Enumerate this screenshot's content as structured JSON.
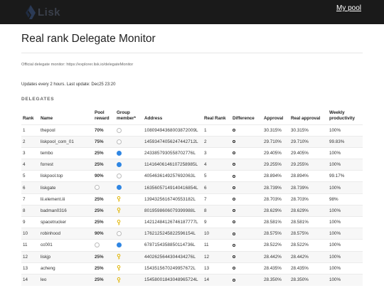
{
  "header": {
    "logo_text": "Lisk",
    "my_pool": "My pool"
  },
  "page": {
    "title": "Real rank Delegate Monitor",
    "official": "Official delegate monitor: https://explorer.lisk.io/delegateMonitor",
    "updates": "Updates every 2 hours. Last update: Dec25 23:20",
    "section": "DELEGATES"
  },
  "table": {
    "columns": [
      "Rank",
      "Name",
      "Pool reward",
      "Group member*",
      "Address",
      "Real Rank",
      "Difference",
      "Approval",
      "Real approval",
      "Weekly productivity"
    ],
    "rows": [
      {
        "rank": "1",
        "name": "thepool",
        "reward": "70%",
        "member": "no",
        "address": "10809494368003872009L",
        "real_rank": "1",
        "approval": "30.315%",
        "real_approval": "30.315%",
        "productivity": "100%"
      },
      {
        "rank": "2",
        "name": "liskpool_com_01",
        "reward": "75%",
        "member": "no",
        "address": "14593474056247442712L",
        "real_rank": "2",
        "approval": "29.710%",
        "real_approval": "29.710%",
        "productivity": "99.83%"
      },
      {
        "rank": "3",
        "name": "tembo",
        "reward": "25%",
        "member": "yes",
        "address": "2433857930558702776L",
        "real_rank": "3",
        "approval": "29.405%",
        "real_approval": "29.405%",
        "productivity": "100%"
      },
      {
        "rank": "4",
        "name": "forrest",
        "reward": "25%",
        "member": "yes",
        "address": "11416406146107258985L",
        "real_rank": "4",
        "approval": "29.255%",
        "real_approval": "29.255%",
        "productivity": "100%"
      },
      {
        "rank": "5",
        "name": "liskpool.top",
        "reward": "90%",
        "member": "no",
        "address": "4054636149257692063L",
        "real_rank": "5",
        "approval": "28.894%",
        "real_approval": "28.894%",
        "productivity": "99.17%"
      },
      {
        "rank": "6",
        "name": "liskgate",
        "reward": "",
        "member": "yes",
        "address": "16356057149140416854L",
        "real_rank": "6",
        "approval": "28.739%",
        "real_approval": "28.739%",
        "productivity": "100%"
      },
      {
        "rank": "7",
        "name": "lii.element.iii",
        "reward": "25%",
        "member": "key",
        "address": "1394325616740553182L",
        "real_rank": "7",
        "approval": "28.703%",
        "real_approval": "28.703%",
        "productivity": "98%"
      },
      {
        "rank": "8",
        "name": "badman0316",
        "reward": "25%",
        "member": "key",
        "address": "8019598606079399988L",
        "real_rank": "8",
        "approval": "28.629%",
        "real_approval": "28.629%",
        "productivity": "100%"
      },
      {
        "rank": "9",
        "name": "spacetrucker",
        "reward": "25%",
        "member": "key",
        "address": "14212484126746187777L",
        "real_rank": "9",
        "approval": "28.581%",
        "real_approval": "28.581%",
        "productivity": "100%"
      },
      {
        "rank": "10",
        "name": "robinhood",
        "reward": "90%",
        "member": "no",
        "address": "1762125245822596154L",
        "real_rank": "10",
        "approval": "28.575%",
        "real_approval": "28.575%",
        "productivity": "100%"
      },
      {
        "rank": "11",
        "name": "cc001",
        "reward": "",
        "member": "yes",
        "address": "6787154358850114736L",
        "real_rank": "11",
        "approval": "28.522%",
        "real_approval": "28.522%",
        "productivity": "100%"
      },
      {
        "rank": "12",
        "name": "liskjp",
        "reward": "25%",
        "member": "key",
        "address": "4402625644304434276L",
        "real_rank": "12",
        "approval": "28.442%",
        "real_approval": "28.442%",
        "productivity": "100%"
      },
      {
        "rank": "13",
        "name": "acheng",
        "reward": "25%",
        "member": "key",
        "address": "1543515670249957672L",
        "real_rank": "13",
        "approval": "28.435%",
        "real_approval": "28.435%",
        "productivity": "100%"
      },
      {
        "rank": "14",
        "name": "leo",
        "reward": "25%",
        "member": "key",
        "address": "15458001843048965724L",
        "real_rank": "14",
        "approval": "28.350%",
        "real_approval": "28.350%",
        "productivity": "100%"
      }
    ]
  },
  "colors": {
    "topbar": "#1a1a1a",
    "link": "#3b8fd6",
    "reward": "#2ea44f",
    "member": "#2f86e3",
    "key": "#e0b400"
  }
}
